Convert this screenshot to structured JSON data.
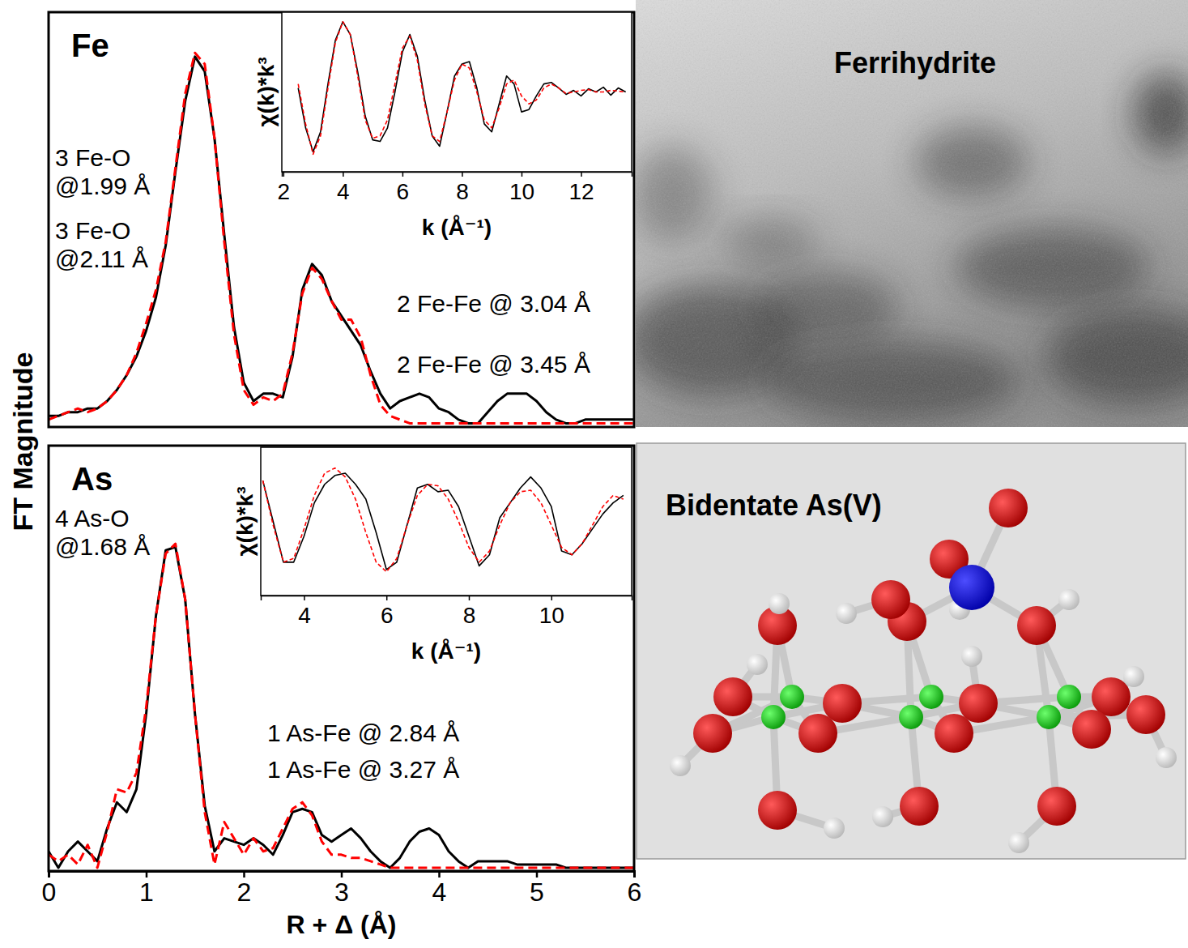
{
  "chart_data": [
    {
      "type": "line",
      "title": "Fe",
      "ylabel": "FT Magnitude",
      "xlim": [
        0,
        6
      ],
      "ylim": [
        0,
        1.12
      ],
      "tick_labels": false,
      "x": [
        0,
        0.1,
        0.2,
        0.3,
        0.4,
        0.5,
        0.6,
        0.7,
        0.8,
        0.9,
        1.0,
        1.1,
        1.2,
        1.3,
        1.4,
        1.5,
        1.6,
        1.7,
        1.8,
        1.9,
        2.0,
        2.1,
        2.2,
        2.3,
        2.4,
        2.5,
        2.6,
        2.7,
        2.8,
        2.9,
        3.0,
        3.1,
        3.2,
        3.3,
        3.4,
        3.5,
        3.6,
        3.7,
        3.8,
        3.9,
        4.0,
        4.1,
        4.2,
        4.3,
        4.4,
        4.5,
        4.6,
        4.7,
        4.8,
        4.9,
        5.0,
        5.1,
        5.2,
        5.3,
        5.4,
        5.5,
        5.6,
        5.7,
        5.8,
        5.9,
        6.0
      ],
      "series": [
        {
          "color": "#000000",
          "line_style": "solid",
          "values": [
            0.03,
            0.03,
            0.04,
            0.04,
            0.05,
            0.05,
            0.07,
            0.1,
            0.14,
            0.19,
            0.26,
            0.35,
            0.49,
            0.69,
            0.88,
            1.0,
            0.96,
            0.78,
            0.52,
            0.27,
            0.12,
            0.07,
            0.09,
            0.09,
            0.08,
            0.19,
            0.37,
            0.44,
            0.41,
            0.34,
            0.3,
            0.26,
            0.22,
            0.15,
            0.09,
            0.05,
            0.07,
            0.08,
            0.09,
            0.08,
            0.05,
            0.04,
            0.02,
            0.01,
            0.01,
            0.04,
            0.07,
            0.09,
            0.09,
            0.09,
            0.07,
            0.04,
            0.02,
            0.01,
            0.01,
            0.02,
            0.02,
            0.02,
            0.02,
            0.02,
            0.02
          ]
        },
        {
          "color": "#ff0000",
          "line_style": "dashed",
          "values": [
            0.02,
            0.03,
            0.04,
            0.05,
            0.04,
            0.05,
            0.07,
            0.1,
            0.14,
            0.2,
            0.28,
            0.37,
            0.5,
            0.7,
            0.9,
            1.01,
            0.98,
            0.78,
            0.5,
            0.25,
            0.1,
            0.06,
            0.08,
            0.07,
            0.09,
            0.2,
            0.36,
            0.43,
            0.4,
            0.34,
            0.29,
            0.29,
            0.24,
            0.14,
            0.06,
            0.03,
            0.02,
            0.01,
            0.01,
            0.01,
            0.01,
            0.01,
            0.01,
            0.01,
            0.01,
            0.01,
            0.01,
            0.01,
            0.01,
            0.01,
            0.01,
            0.01,
            0.01,
            0.01,
            0.01,
            0.01,
            0.01,
            0.01,
            0.01,
            0.01,
            0.01
          ]
        }
      ],
      "annotations": [
        "3 Fe-O @1.99 Å",
        "3 Fe-O @2.11 Å",
        "2 Fe-Fe @ 3.04 Å",
        "2 Fe-Fe @ 3.45 Å"
      ]
    },
    {
      "type": "line",
      "xlabel": "k (Å⁻¹)",
      "ylabel": "χ(k)*k³",
      "xlim": [
        1.95,
        13.7
      ],
      "ylim": [
        -1,
        1
      ],
      "xticks": [
        2,
        4,
        6,
        8,
        10,
        12
      ],
      "tick_labels": "x",
      "x": [
        2.5,
        2.75,
        3.0,
        3.25,
        3.5,
        3.75,
        4.0,
        4.25,
        4.5,
        4.75,
        5.0,
        5.25,
        5.5,
        5.75,
        6.0,
        6.25,
        6.5,
        6.75,
        7.0,
        7.25,
        7.5,
        7.75,
        8.0,
        8.25,
        8.5,
        8.75,
        9.0,
        9.25,
        9.5,
        9.75,
        10.0,
        10.25,
        10.5,
        10.75,
        11.0,
        11.25,
        11.5,
        11.75,
        12.0,
        12.25,
        12.5,
        12.75,
        13.0,
        13.25,
        13.5
      ],
      "series": [
        {
          "color": "#000000",
          "line_style": "solid",
          "values": [
            0.05,
            -0.45,
            -0.75,
            -0.5,
            0.1,
            0.65,
            0.88,
            0.72,
            0.25,
            -0.3,
            -0.6,
            -0.62,
            -0.45,
            0,
            0.5,
            0.72,
            0.45,
            -0.1,
            -0.55,
            -0.68,
            -0.25,
            0.2,
            0.35,
            0.38,
            0.05,
            -0.4,
            -0.5,
            -0.15,
            0.2,
            0.1,
            -0.25,
            -0.22,
            -0.05,
            0.1,
            0.12,
            0.05,
            -0.03,
            0.02,
            -0.05,
            0.04,
            0,
            0.06,
            -0.04,
            0.05,
            0
          ]
        },
        {
          "color": "#ff0000",
          "line_style": "dashed",
          "values": [
            0.1,
            -0.4,
            -0.78,
            -0.55,
            0.05,
            0.62,
            0.88,
            0.72,
            0.2,
            -0.35,
            -0.58,
            -0.55,
            -0.35,
            0.1,
            0.55,
            0.7,
            0.4,
            -0.15,
            -0.55,
            -0.62,
            -0.25,
            0.15,
            0.35,
            0.3,
            0,
            -0.35,
            -0.45,
            -0.2,
            0.1,
            0.15,
            -0.05,
            -0.15,
            -0.1,
            0.05,
            0.1,
            0.05,
            -0.02,
            0,
            0.02,
            0.03,
            0,
            0,
            0.02,
            0.01,
            0
          ]
        }
      ]
    },
    {
      "type": "line",
      "title": "As",
      "xlabel": "R + Δ (Å)",
      "xlim": [
        0,
        6
      ],
      "ylim": [
        0,
        1.3
      ],
      "xticks": [
        0,
        1,
        2,
        3,
        4,
        5,
        6
      ],
      "tick_labels": "x",
      "x": [
        0,
        0.1,
        0.2,
        0.3,
        0.4,
        0.5,
        0.6,
        0.7,
        0.8,
        0.9,
        1.0,
        1.1,
        1.2,
        1.3,
        1.4,
        1.5,
        1.6,
        1.7,
        1.8,
        1.9,
        2.0,
        2.1,
        2.2,
        2.3,
        2.4,
        2.5,
        2.6,
        2.7,
        2.8,
        2.9,
        3.0,
        3.1,
        3.2,
        3.3,
        3.4,
        3.5,
        3.6,
        3.7,
        3.8,
        3.9,
        4.0,
        4.1,
        4.2,
        4.3,
        4.4,
        4.5,
        4.6,
        4.7,
        4.8,
        4.9,
        5.0,
        5.1,
        5.2,
        5.3,
        5.4,
        5.5,
        5.6,
        5.7,
        5.8,
        5.9,
        6.0
      ],
      "series": [
        {
          "color": "#000000",
          "line_style": "solid",
          "values": [
            0.06,
            0.01,
            0.06,
            0.09,
            0.06,
            0.03,
            0.13,
            0.21,
            0.18,
            0.25,
            0.48,
            0.78,
            0.98,
            0.99,
            0.83,
            0.48,
            0.2,
            0.06,
            0.1,
            0.09,
            0.08,
            0.1,
            0.08,
            0.05,
            0.11,
            0.18,
            0.19,
            0.18,
            0.11,
            0.09,
            0.11,
            0.13,
            0.1,
            0.06,
            0.03,
            0.01,
            0.04,
            0.09,
            0.12,
            0.13,
            0.11,
            0.06,
            0.03,
            0.01,
            0.03,
            0.03,
            0.03,
            0.03,
            0.02,
            0.02,
            0.02,
            0.02,
            0.02,
            0.01,
            0.01,
            0.01,
            0.01,
            0.01,
            0.01,
            0.01,
            0.01
          ]
        },
        {
          "color": "#ff0000",
          "line_style": "dashed",
          "values": [
            0.05,
            0.03,
            0.05,
            0.02,
            0.08,
            0.01,
            0.12,
            0.25,
            0.24,
            0.3,
            0.5,
            0.78,
            0.97,
            1.0,
            0.83,
            0.48,
            0.18,
            0.02,
            0.15,
            0.1,
            0.05,
            0.1,
            0.06,
            0.07,
            0.13,
            0.19,
            0.21,
            0.17,
            0.09,
            0.05,
            0.05,
            0.04,
            0.04,
            0.03,
            0.02,
            0.01,
            0.01,
            0.01,
            0.01,
            0.01,
            0.01,
            0.01,
            0.01,
            0.01,
            0.01,
            0.01,
            0.01,
            0.01,
            0.01,
            0.01,
            0.01,
            0.01,
            0.01,
            0.01,
            0.01,
            0.01,
            0.01,
            0.01,
            0.01,
            0.01,
            0.01
          ]
        }
      ],
      "annotations": [
        "4 As-O @1.68 Å",
        "1 As-Fe @ 2.84 Å",
        "1 As-Fe @ 3.27 Å"
      ]
    },
    {
      "type": "line",
      "xlabel": "k (Å⁻¹)",
      "ylabel": "χ(k)*k³",
      "xlim": [
        2.95,
        11.95
      ],
      "ylim": [
        -1,
        1
      ],
      "xticks": [
        4,
        6,
        8,
        10
      ],
      "tick_labels": "x",
      "x": [
        3.0,
        3.25,
        3.5,
        3.75,
        4.0,
        4.25,
        4.5,
        4.75,
        5.0,
        5.25,
        5.5,
        5.75,
        6.0,
        6.25,
        6.5,
        6.75,
        7.0,
        7.25,
        7.5,
        7.75,
        8.0,
        8.25,
        8.5,
        8.75,
        9.0,
        9.25,
        9.5,
        9.75,
        10.0,
        10.25,
        10.5,
        10.75,
        11.0,
        11.25,
        11.5,
        11.75
      ],
      "series": [
        {
          "color": "#000000",
          "line_style": "solid",
          "values": [
            0.55,
            0,
            -0.55,
            -0.55,
            -0.2,
            0.25,
            0.5,
            0.62,
            0.65,
            0.5,
            0.3,
            -0.15,
            -0.65,
            -0.55,
            -0.05,
            0.45,
            0.5,
            0.4,
            0.42,
            0.2,
            -0.2,
            -0.6,
            -0.45,
            0.05,
            0.25,
            0.45,
            0.6,
            0.45,
            0.2,
            -0.4,
            -0.45,
            -0.3,
            -0.1,
            0.1,
            0.25,
            0.35
          ]
        },
        {
          "color": "#ff0000",
          "line_style": "dashed",
          "values": [
            0.55,
            -0.05,
            -0.55,
            -0.5,
            -0.1,
            0.35,
            0.65,
            0.72,
            0.6,
            0.3,
            -0.15,
            -0.55,
            -0.68,
            -0.5,
            -0.05,
            0.35,
            0.5,
            0.48,
            0.3,
            0,
            -0.35,
            -0.55,
            -0.4,
            -0.05,
            0.25,
            0.4,
            0.42,
            0.25,
            -0.05,
            -0.35,
            -0.45,
            -0.3,
            -0.05,
            0.2,
            0.35,
            0.3
          ]
        }
      ]
    }
  ],
  "panels": [
    {
      "title": "Ferrihydrite"
    },
    {
      "title": "Bidentate As(V)"
    }
  ]
}
